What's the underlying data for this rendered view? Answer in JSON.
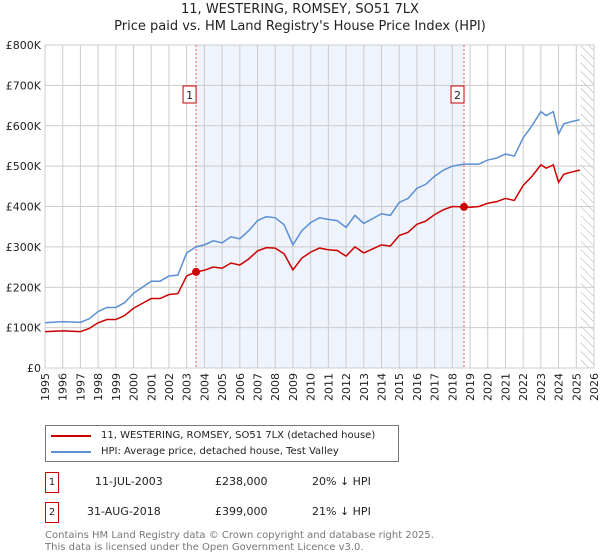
{
  "title_line1": "11, WESTERING, ROMSEY, SO51 7LX",
  "title_line2": "Price paid vs. HM Land Registry's House Price Index (HPI)",
  "chart_data": {
    "type": "line",
    "xlim": [
      1995,
      2026
    ],
    "ylim": [
      0,
      800000
    ],
    "yticks": [
      {
        "v": 0,
        "label": "£0"
      },
      {
        "v": 100000,
        "label": "£100K"
      },
      {
        "v": 200000,
        "label": "£200K"
      },
      {
        "v": 300000,
        "label": "£300K"
      },
      {
        "v": 400000,
        "label": "£400K"
      },
      {
        "v": 500000,
        "label": "£500K"
      },
      {
        "v": 600000,
        "label": "£600K"
      },
      {
        "v": 700000,
        "label": "£700K"
      },
      {
        "v": 800000,
        "label": "£800K"
      }
    ],
    "xticks": [
      "1995",
      "1996",
      "1997",
      "1998",
      "1999",
      "2000",
      "2001",
      "2002",
      "2003",
      "2004",
      "2005",
      "2006",
      "2007",
      "2008",
      "2009",
      "2010",
      "2011",
      "2012",
      "2013",
      "2014",
      "2015",
      "2016",
      "2017",
      "2018",
      "2019",
      "2020",
      "2021",
      "2022",
      "2023",
      "2024",
      "2025",
      "2026"
    ],
    "shaded_range": [
      2003.53,
      2018.66
    ],
    "forecast_hatch_from": 2025.25,
    "series": [
      {
        "name": "11, WESTERING, ROMSEY, SO51 7LX (detached house)",
        "color": "#cc0000",
        "x": [
          1995,
          1996,
          1997,
          1997.5,
          1998,
          1998.5,
          1999,
          1999.5,
          2000,
          2000.5,
          2001,
          2001.5,
          2002,
          2002.5,
          2003,
          2003.53,
          2004,
          2004.5,
          2005,
          2005.5,
          2006,
          2006.5,
          2007,
          2007.5,
          2008,
          2008.5,
          2009,
          2009.5,
          2010,
          2010.5,
          2011,
          2011.5,
          2012,
          2012.5,
          2013,
          2013.5,
          2014,
          2014.5,
          2015,
          2015.5,
          2016,
          2016.5,
          2017,
          2017.5,
          2018,
          2018.66,
          2019,
          2019.5,
          2020,
          2020.5,
          2021,
          2021.5,
          2022,
          2022.5,
          2023,
          2023.3,
          2023.7,
          2024,
          2024.3,
          2024.7,
          2025.2
        ],
        "y": [
          90000,
          92000,
          90000,
          98000,
          112000,
          120000,
          120000,
          130000,
          148000,
          160000,
          172000,
          172000,
          182000,
          184000,
          228000,
          238000,
          242000,
          250000,
          247000,
          260000,
          255000,
          270000,
          290000,
          298000,
          297000,
          283000,
          243000,
          272000,
          287000,
          297000,
          293000,
          291000,
          277000,
          300000,
          285000,
          295000,
          305000,
          302000,
          328000,
          336000,
          356000,
          364000,
          380000,
          392000,
          400000,
          399000,
          398000,
          400000,
          408000,
          412000,
          420000,
          415000,
          452000,
          475000,
          503000,
          495000,
          503000,
          460000,
          480000,
          485000,
          490000
        ]
      },
      {
        "name": "HPI: Average price, detached house, Test Valley",
        "color": "#5b8fd4",
        "x": [
          1995,
          1996,
          1997,
          1997.5,
          1998,
          1998.5,
          1999,
          1999.5,
          2000,
          2000.5,
          2001,
          2001.5,
          2002,
          2002.5,
          2003,
          2003.53,
          2004,
          2004.5,
          2005,
          2005.5,
          2006,
          2006.5,
          2007,
          2007.5,
          2008,
          2008.5,
          2009,
          2009.5,
          2010,
          2010.5,
          2011,
          2011.5,
          2012,
          2012.5,
          2013,
          2013.5,
          2014,
          2014.5,
          2015,
          2015.5,
          2016,
          2016.5,
          2017,
          2017.5,
          2018,
          2018.66,
          2019,
          2019.5,
          2020,
          2020.5,
          2021,
          2021.5,
          2022,
          2022.5,
          2023,
          2023.3,
          2023.7,
          2024,
          2024.3,
          2024.7,
          2025.2
        ],
        "y": [
          112000,
          115000,
          113000,
          122000,
          140000,
          150000,
          150000,
          162000,
          185000,
          200000,
          215000,
          215000,
          228000,
          230000,
          285000,
          300000,
          305000,
          315000,
          310000,
          325000,
          320000,
          340000,
          365000,
          375000,
          372000,
          355000,
          305000,
          340000,
          360000,
          372000,
          368000,
          365000,
          348000,
          378000,
          358000,
          370000,
          382000,
          378000,
          410000,
          420000,
          445000,
          455000,
          475000,
          490000,
          500000,
          505000,
          505000,
          505000,
          515000,
          520000,
          530000,
          525000,
          570000,
          600000,
          635000,
          625000,
          635000,
          580000,
          605000,
          610000,
          615000
        ]
      }
    ],
    "annotations": [
      {
        "label": "1",
        "x": 2003.53,
        "y": 238000
      },
      {
        "label": "2",
        "x": 2018.66,
        "y": 399000
      }
    ]
  },
  "legend": {
    "property": "11, WESTERING, ROMSEY, SO51 7LX (detached house)",
    "hpi": "HPI: Average price, detached house, Test Valley",
    "property_color": "#cc0000",
    "hpi_color": "#5b8fd4"
  },
  "sales": [
    {
      "num": "1",
      "date": "11-JUL-2003",
      "price": "£238,000",
      "delta": "20% ↓ HPI"
    },
    {
      "num": "2",
      "date": "31-AUG-2018",
      "price": "£399,000",
      "delta": "21% ↓ HPI"
    }
  ],
  "footer": {
    "line1": "Contains HM Land Registry data © Crown copyright and database right 2025.",
    "line2": "This data is licensed under the Open Government Licence v3.0."
  }
}
